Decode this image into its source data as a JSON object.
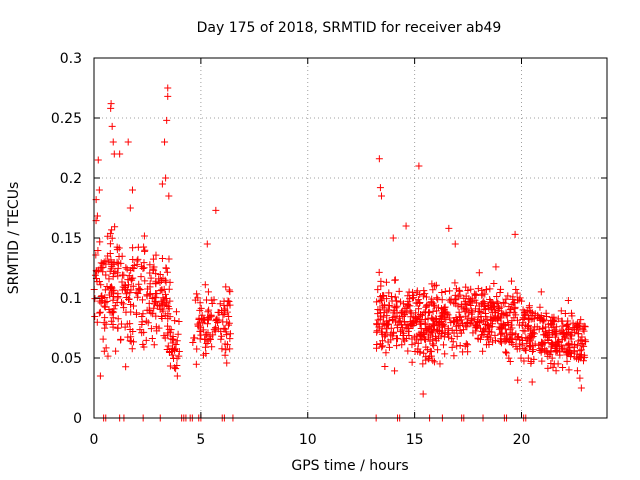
{
  "chart_data": {
    "type": "scatter",
    "title": "Day 175 of 2018, SRMTID for receiver ab49",
    "xlabel": "GPS time / hours",
    "ylabel": "SRMTID / TECUs",
    "xlim": [
      0,
      24
    ],
    "ylim": [
      0,
      0.3
    ],
    "grid": true,
    "marker": "plus",
    "color": "#ff0000",
    "x_ticks": [
      0,
      5,
      10,
      15,
      20
    ],
    "x_tick_labels": [
      "0",
      "5",
      "10",
      "15",
      "20"
    ],
    "y_ticks": [
      0,
      0.05,
      0.1,
      0.15,
      0.2,
      0.25,
      0.3
    ],
    "y_tick_labels": [
      "0",
      "0.05",
      "0.1",
      "0.15",
      "0.2",
      "0.25",
      "0.3"
    ],
    "series": [
      {
        "name": "SRMTID",
        "clusters": [
          {
            "x_range": [
              0.0,
              1.2
            ],
            "y_center": 0.11,
            "y_spread": 0.045,
            "count": 110
          },
          {
            "x_range": [
              1.2,
              2.4
            ],
            "y_center": 0.105,
            "y_spread": 0.04,
            "count": 90
          },
          {
            "x_range": [
              2.4,
              3.6
            ],
            "y_center": 0.1,
            "y_spread": 0.035,
            "count": 90
          },
          {
            "x_range": [
              3.4,
              4.0
            ],
            "y_center": 0.065,
            "y_spread": 0.025,
            "count": 35
          },
          {
            "x_range": [
              4.6,
              6.4
            ],
            "y_center": 0.08,
            "y_spread": 0.025,
            "count": 110
          },
          {
            "x_range": [
              13.2,
              15.0
            ],
            "y_center": 0.085,
            "y_spread": 0.03,
            "count": 160
          },
          {
            "x_range": [
              15.0,
              17.0
            ],
            "y_center": 0.08,
            "y_spread": 0.028,
            "count": 200
          },
          {
            "x_range": [
              17.0,
              19.0
            ],
            "y_center": 0.085,
            "y_spread": 0.025,
            "count": 180
          },
          {
            "x_range": [
              19.0,
              21.0
            ],
            "y_center": 0.075,
            "y_spread": 0.025,
            "count": 180
          },
          {
            "x_range": [
              21.0,
              23.0
            ],
            "y_center": 0.065,
            "y_spread": 0.022,
            "count": 180
          }
        ],
        "outliers": [
          {
            "x": 0.2,
            "y": 0.215
          },
          {
            "x": 0.25,
            "y": 0.19
          },
          {
            "x": 0.1,
            "y": 0.182
          },
          {
            "x": 0.8,
            "y": 0.262
          },
          {
            "x": 0.78,
            "y": 0.258
          },
          {
            "x": 0.85,
            "y": 0.243
          },
          {
            "x": 0.9,
            "y": 0.23
          },
          {
            "x": 0.95,
            "y": 0.22
          },
          {
            "x": 1.2,
            "y": 0.22
          },
          {
            "x": 1.6,
            "y": 0.23
          },
          {
            "x": 1.8,
            "y": 0.19
          },
          {
            "x": 1.7,
            "y": 0.175
          },
          {
            "x": 3.45,
            "y": 0.275
          },
          {
            "x": 3.45,
            "y": 0.268
          },
          {
            "x": 3.4,
            "y": 0.248
          },
          {
            "x": 3.3,
            "y": 0.23
          },
          {
            "x": 3.35,
            "y": 0.2
          },
          {
            "x": 3.2,
            "y": 0.195
          },
          {
            "x": 3.5,
            "y": 0.185
          },
          {
            "x": 5.7,
            "y": 0.173
          },
          {
            "x": 5.3,
            "y": 0.145
          },
          {
            "x": 13.35,
            "y": 0.216
          },
          {
            "x": 13.4,
            "y": 0.192
          },
          {
            "x": 13.45,
            "y": 0.185
          },
          {
            "x": 15.2,
            "y": 0.21
          },
          {
            "x": 14.6,
            "y": 0.16
          },
          {
            "x": 16.6,
            "y": 0.158
          },
          {
            "x": 19.7,
            "y": 0.153
          },
          {
            "x": 14.0,
            "y": 0.15
          },
          {
            "x": 16.9,
            "y": 0.145
          },
          {
            "x": 3.9,
            "y": 0.035
          },
          {
            "x": 0.3,
            "y": 0.035
          },
          {
            "x": 15.4,
            "y": 0.02
          },
          {
            "x": 20.5,
            "y": 0.03
          },
          {
            "x": 22.8,
            "y": 0.025
          }
        ],
        "zero_points_x": [
          0.45,
          0.55,
          1.2,
          1.4,
          2.3,
          3.1,
          4.1,
          4.2,
          4.3,
          4.5,
          4.6,
          4.9,
          5.0,
          6.0,
          6.1,
          6.5,
          13.2,
          14.2,
          14.3,
          15.7,
          16.3,
          17.2,
          17.3,
          18.2,
          19.2,
          19.3,
          20.1,
          20.2
        ]
      }
    ]
  }
}
